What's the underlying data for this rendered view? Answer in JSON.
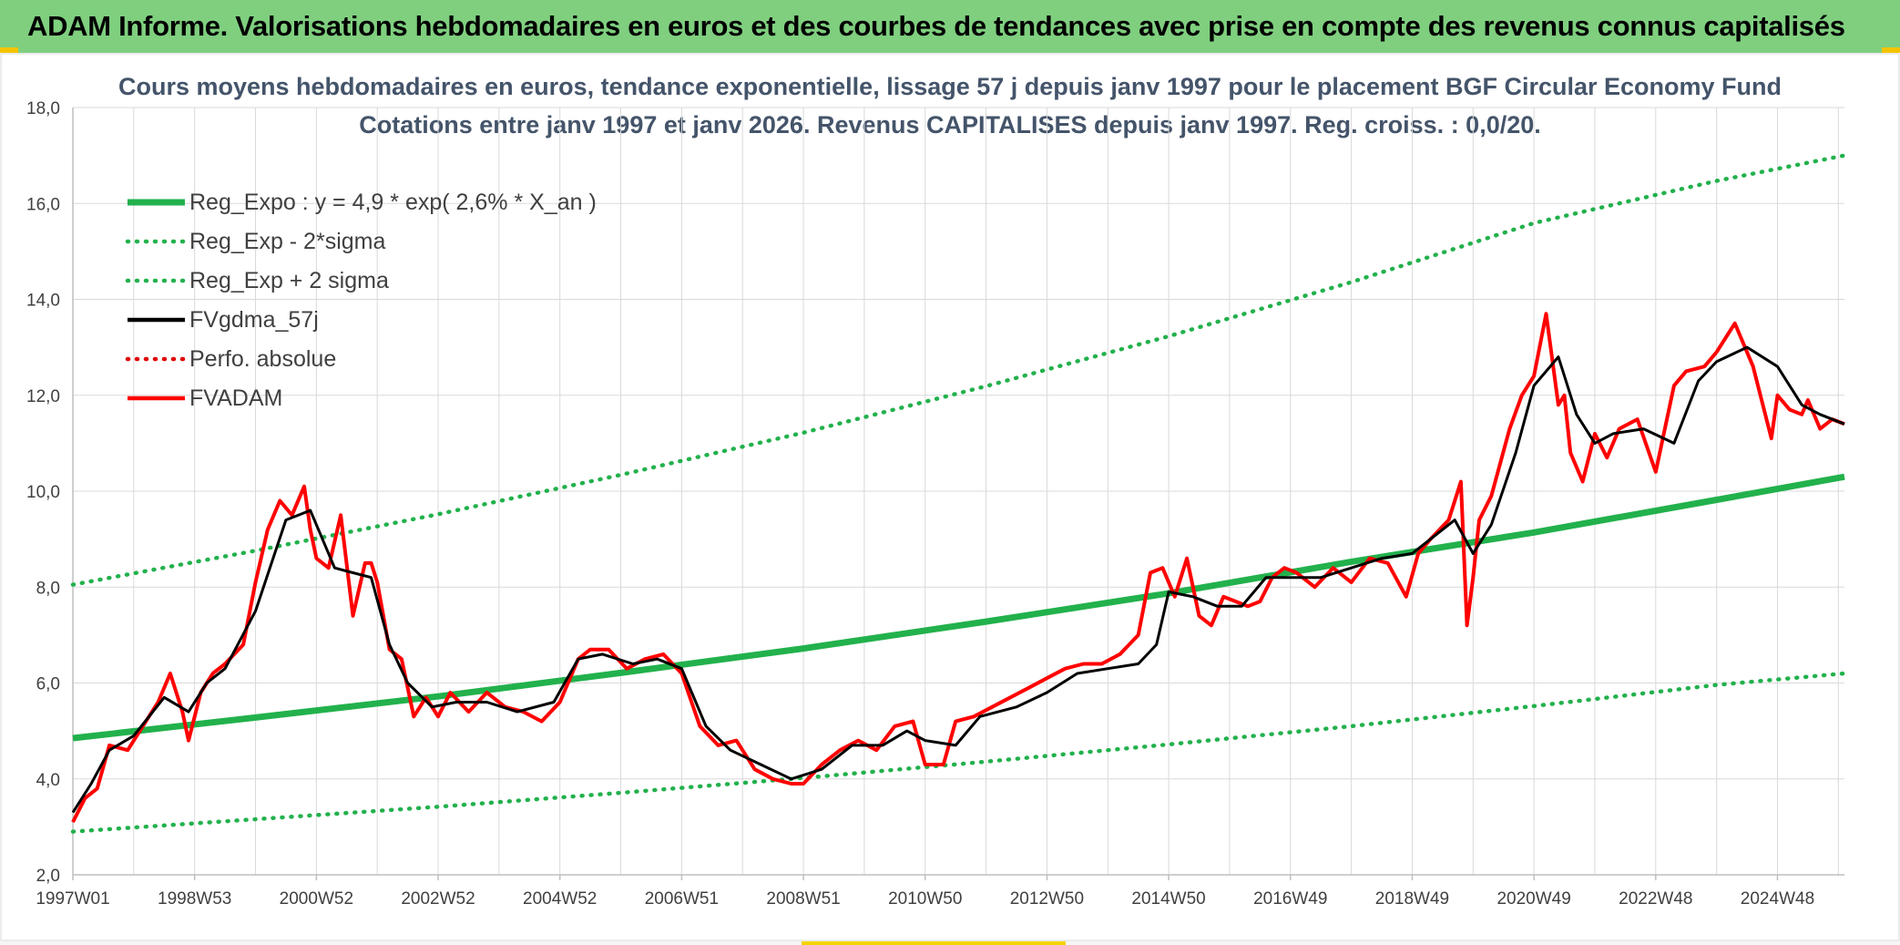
{
  "header": {
    "title": "ADAM Informe. Valorisations hebdomadaires en euros et des courbes de tendances avec prise en compte des revenus connus capitalisés"
  },
  "chart_data": {
    "type": "line",
    "title": "Cours moyens hebdomadaires en euros, tendance exponentielle, lissage 57 j depuis janv 1997 pour le placement BGF Circular Economy Fund",
    "subtitle": "Cotations entre janv 1997 et janv 2026. Revenus CAPITALISES depuis janv 1997. Reg. croiss. : 0,0/20.",
    "xlabel": "",
    "ylabel": "",
    "xlim": [
      1997.0,
      2026.1
    ],
    "ylim": [
      2.0,
      18.0
    ],
    "yticks": [
      "2,0",
      "4,0",
      "6,0",
      "8,0",
      "10,0",
      "12,0",
      "14,0",
      "16,0",
      "18,0"
    ],
    "xticks": [
      {
        "label": "1997W01",
        "x": 1997.0
      },
      {
        "label": "1998W53",
        "x": 1999.0
      },
      {
        "label": "2000W52",
        "x": 2001.0
      },
      {
        "label": "2002W52",
        "x": 2003.0
      },
      {
        "label": "2004W52",
        "x": 2005.0
      },
      {
        "label": "2006W51",
        "x": 2007.0
      },
      {
        "label": "2008W51",
        "x": 2009.0
      },
      {
        "label": "2010W50",
        "x": 2011.0
      },
      {
        "label": "2012W50",
        "x": 2013.0
      },
      {
        "label": "2014W50",
        "x": 2015.0
      },
      {
        "label": "2016W49",
        "x": 2017.0
      },
      {
        "label": "2018W49",
        "x": 2019.0
      },
      {
        "label": "2020W49",
        "x": 2021.0
      },
      {
        "label": "2022W48",
        "x": 2023.0
      },
      {
        "label": "2024W48",
        "x": 2025.0
      }
    ],
    "grid": true,
    "legend_position": "top-left",
    "series": [
      {
        "name": "Reg_Expo : y = 4,9 * exp( 2,6% *  X_an )",
        "style": "solid",
        "color": "#22b14c",
        "x": [
          1997.0,
          2000.0,
          2003.0,
          2006.0,
          2009.0,
          2012.0,
          2015.0,
          2018.0,
          2021.0,
          2024.0,
          2026.1
        ],
        "values": [
          4.85,
          5.28,
          5.72,
          6.21,
          6.72,
          7.28,
          7.87,
          8.53,
          9.14,
          9.82,
          10.3
        ]
      },
      {
        "name": "Reg_Exp - 2*sigma",
        "style": "dotted",
        "color": "#22b14c",
        "x": [
          1997.0,
          2000.0,
          2003.0,
          2006.0,
          2009.0,
          2012.0,
          2015.0,
          2018.0,
          2021.0,
          2024.0,
          2026.1
        ],
        "values": [
          2.9,
          3.16,
          3.42,
          3.71,
          4.02,
          4.36,
          4.72,
          5.1,
          5.52,
          5.96,
          6.2
        ]
      },
      {
        "name": "Reg_Exp + 2 sigma",
        "style": "dotted",
        "color": "#22b14c",
        "x": [
          1997.0,
          2000.0,
          2003.0,
          2006.0,
          2009.0,
          2012.0,
          2015.0,
          2018.0,
          2021.0,
          2024.0,
          2026.1
        ],
        "values": [
          8.05,
          8.76,
          9.52,
          10.34,
          11.22,
          12.19,
          13.23,
          14.36,
          15.59,
          16.47,
          17.0
        ]
      },
      {
        "name": "FVgdma_57j",
        "style": "solid",
        "color": "#000000",
        "x": [
          1997.0,
          1997.3,
          1997.6,
          1998.0,
          1998.5,
          1998.9,
          1999.2,
          1999.5,
          2000.0,
          2000.5,
          2000.9,
          2001.3,
          2001.6,
          2001.9,
          2002.2,
          2002.5,
          2002.9,
          2003.3,
          2003.8,
          2004.3,
          2004.9,
          2005.3,
          2005.7,
          2006.2,
          2006.6,
          2007.0,
          2007.4,
          2007.8,
          2008.3,
          2008.8,
          2009.3,
          2009.8,
          2010.3,
          2010.7,
          2011.0,
          2011.5,
          2011.9,
          2012.5,
          2013.0,
          2013.5,
          2014.0,
          2014.5,
          2014.8,
          2015.0,
          2015.4,
          2015.8,
          2016.2,
          2016.6,
          2017.0,
          2017.5,
          2018.0,
          2018.5,
          2019.0,
          2019.5,
          2019.7,
          2020.0,
          2020.3,
          2020.7,
          2021.0,
          2021.4,
          2021.7,
          2022.0,
          2022.3,
          2022.8,
          2023.3,
          2023.7,
          2024.0,
          2024.5,
          2025.0,
          2025.4,
          2025.7,
          2026.1
        ],
        "values": [
          3.3,
          3.9,
          4.6,
          4.9,
          5.7,
          5.4,
          6.0,
          6.3,
          7.5,
          9.4,
          9.6,
          8.4,
          8.3,
          8.2,
          6.8,
          6.0,
          5.5,
          5.6,
          5.6,
          5.4,
          5.6,
          6.5,
          6.6,
          6.4,
          6.5,
          6.3,
          5.1,
          4.6,
          4.3,
          4.0,
          4.2,
          4.7,
          4.7,
          5.0,
          4.8,
          4.7,
          5.3,
          5.5,
          5.8,
          6.2,
          6.3,
          6.4,
          6.8,
          7.9,
          7.8,
          7.6,
          7.6,
          8.2,
          8.2,
          8.2,
          8.4,
          8.6,
          8.7,
          9.2,
          9.4,
          8.7,
          9.3,
          10.8,
          12.2,
          12.8,
          11.6,
          11.0,
          11.2,
          11.3,
          11.0,
          12.3,
          12.7,
          13.0,
          12.6,
          11.8,
          11.6,
          11.4
        ]
      },
      {
        "name": "Perfo. absolue",
        "style": "dotted",
        "color": "#e00000",
        "x": [],
        "values": []
      },
      {
        "name": "FVADAM",
        "style": "solid",
        "color": "#ff0000",
        "x": [
          1997.0,
          1997.2,
          1997.4,
          1997.6,
          1997.9,
          1998.2,
          1998.4,
          1998.6,
          1998.8,
          1998.9,
          1999.1,
          1999.3,
          1999.5,
          1999.8,
          2000.0,
          2000.2,
          2000.4,
          2000.6,
          2000.8,
          2000.9,
          2001.0,
          2001.2,
          2001.4,
          2001.6,
          2001.8,
          2001.9,
          2002.0,
          2002.2,
          2002.4,
          2002.6,
          2002.8,
          2003.0,
          2003.2,
          2003.5,
          2003.8,
          2004.1,
          2004.4,
          2004.7,
          2005.0,
          2005.3,
          2005.5,
          2005.8,
          2006.1,
          2006.4,
          2006.7,
          2007.0,
          2007.3,
          2007.6,
          2007.9,
          2008.2,
          2008.5,
          2008.8,
          2009.0,
          2009.3,
          2009.6,
          2009.9,
          2010.2,
          2010.5,
          2010.8,
          2011.0,
          2011.3,
          2011.5,
          2011.8,
          2012.1,
          2012.4,
          2012.7,
          2013.0,
          2013.3,
          2013.6,
          2013.9,
          2014.2,
          2014.5,
          2014.7,
          2014.9,
          2015.1,
          2015.3,
          2015.5,
          2015.7,
          2015.9,
          2016.1,
          2016.3,
          2016.5,
          2016.7,
          2016.9,
          2017.1,
          2017.4,
          2017.7,
          2018.0,
          2018.3,
          2018.6,
          2018.9,
          2019.1,
          2019.3,
          2019.6,
          2019.8,
          2019.9,
          2020.0,
          2020.1,
          2020.3,
          2020.6,
          2020.8,
          2021.0,
          2021.2,
          2021.4,
          2021.5,
          2021.6,
          2021.8,
          2022.0,
          2022.2,
          2022.4,
          2022.7,
          2023.0,
          2023.3,
          2023.5,
          2023.8,
          2024.0,
          2024.3,
          2024.6,
          2024.9,
          2025.0,
          2025.2,
          2025.4,
          2025.5,
          2025.7,
          2025.9,
          2026.1
        ],
        "values": [
          3.1,
          3.6,
          3.8,
          4.7,
          4.6,
          5.2,
          5.6,
          6.2,
          5.4,
          4.8,
          5.8,
          6.2,
          6.4,
          6.8,
          8.1,
          9.2,
          9.8,
          9.5,
          10.1,
          9.2,
          8.6,
          8.4,
          9.5,
          7.4,
          8.5,
          8.5,
          8.1,
          6.7,
          6.5,
          5.3,
          5.7,
          5.3,
          5.8,
          5.4,
          5.8,
          5.5,
          5.4,
          5.2,
          5.6,
          6.5,
          6.7,
          6.7,
          6.3,
          6.5,
          6.6,
          6.2,
          5.1,
          4.7,
          4.8,
          4.2,
          4.0,
          3.9,
          3.9,
          4.3,
          4.6,
          4.8,
          4.6,
          5.1,
          5.2,
          4.3,
          4.3,
          5.2,
          5.3,
          5.5,
          5.7,
          5.9,
          6.1,
          6.3,
          6.4,
          6.4,
          6.6,
          7.0,
          8.3,
          8.4,
          7.8,
          8.6,
          7.4,
          7.2,
          7.8,
          7.7,
          7.6,
          7.7,
          8.2,
          8.4,
          8.3,
          8.0,
          8.4,
          8.1,
          8.6,
          8.5,
          7.8,
          8.7,
          9.0,
          9.4,
          10.2,
          7.2,
          8.2,
          9.4,
          9.9,
          11.3,
          12.0,
          12.4,
          13.7,
          11.8,
          12.0,
          10.8,
          10.2,
          11.2,
          10.7,
          11.3,
          11.5,
          10.4,
          12.2,
          12.5,
          12.6,
          12.9,
          13.5,
          12.6,
          11.1,
          12.0,
          11.7,
          11.6,
          11.9,
          11.3,
          11.5,
          11.4
        ]
      }
    ]
  }
}
